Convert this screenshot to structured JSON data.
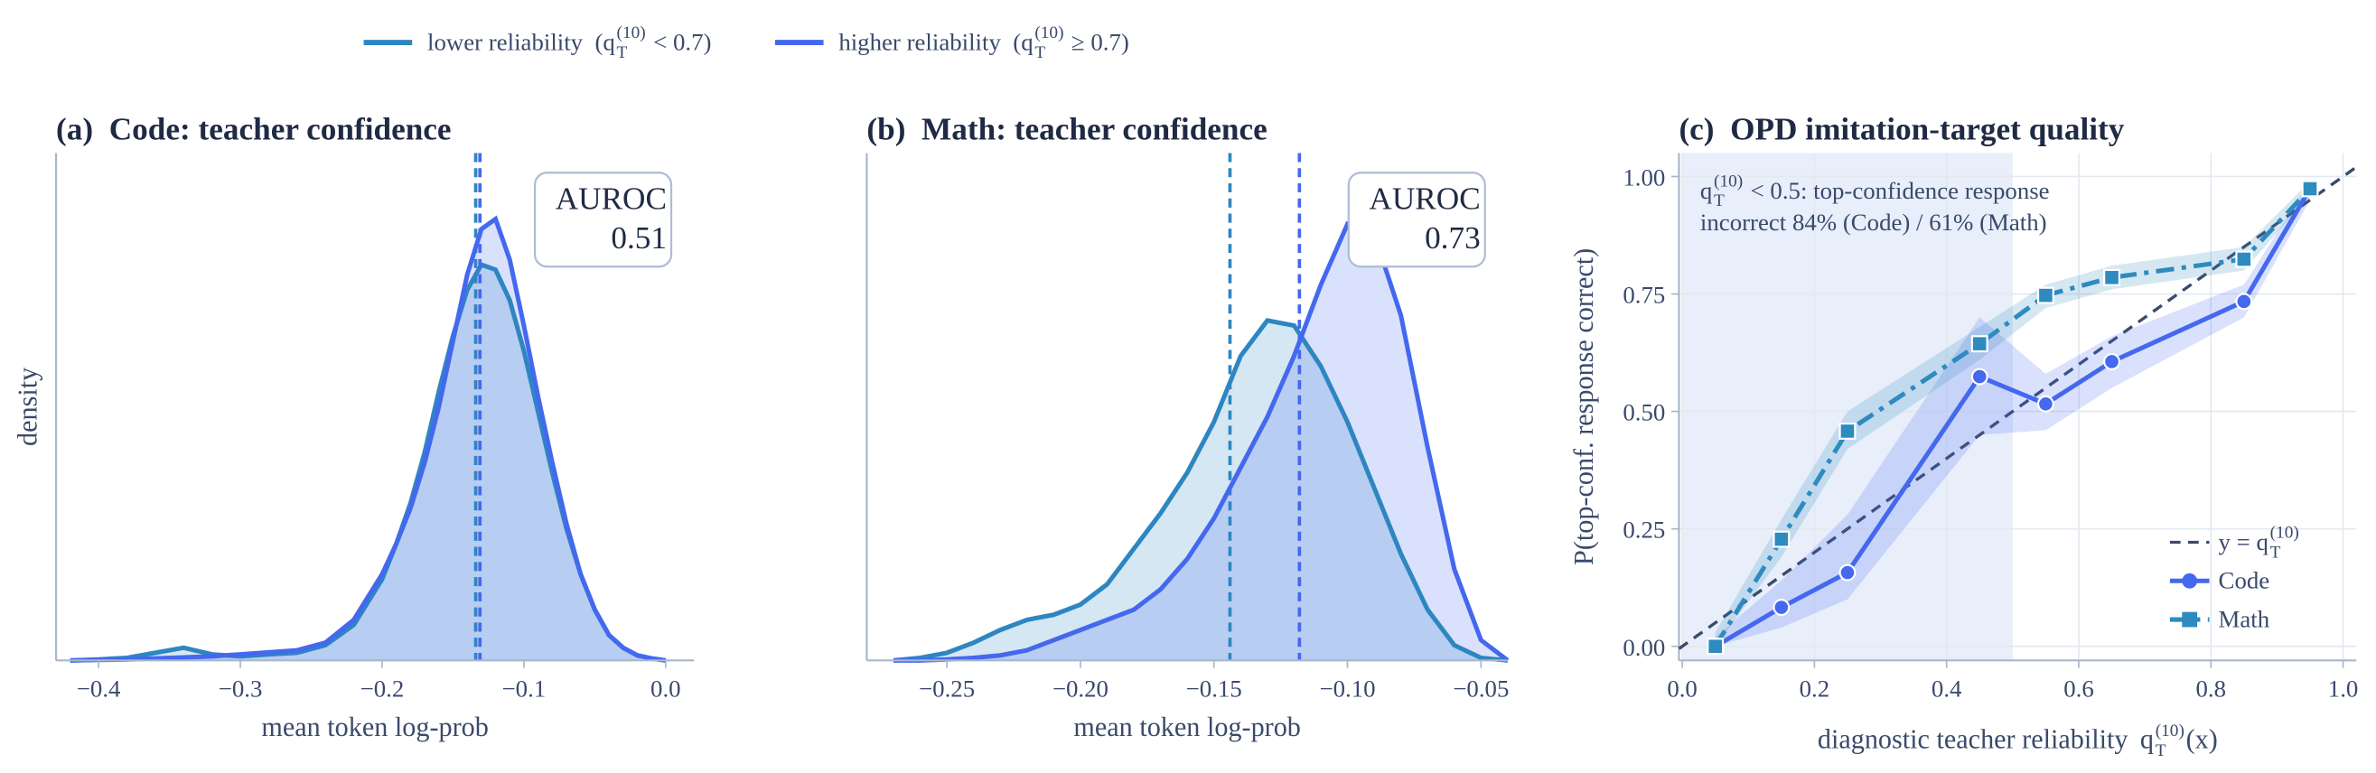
{
  "chart_data": [
    {
      "type": "density",
      "title": "(a)  Code: teacher confidence",
      "xlabel": "mean token log-prob",
      "ylabel": "density",
      "x": [
        -0.42,
        -0.4,
        -0.38,
        -0.36,
        -0.34,
        -0.32,
        -0.3,
        -0.28,
        -0.26,
        -0.24,
        -0.22,
        -0.2,
        -0.19,
        -0.18,
        -0.17,
        -0.16,
        -0.15,
        -0.14,
        -0.13,
        -0.12,
        -0.11,
        -0.1,
        -0.09,
        -0.08,
        -0.07,
        -0.06,
        -0.05,
        -0.04,
        -0.03,
        -0.02,
        -0.01,
        0.0
      ],
      "series": [
        {
          "name": "lower reliability",
          "condition": [
            "(q",
            "T",
            "(10)",
            " < 0.7)"
          ],
          "color": "#2e86c1",
          "vline": -0.134,
          "values": [
            0,
            0.002,
            0.005,
            0.015,
            0.025,
            0.012,
            0.008,
            0.012,
            0.015,
            0.03,
            0.07,
            0.16,
            0.23,
            0.31,
            0.41,
            0.53,
            0.64,
            0.73,
            0.78,
            0.77,
            0.71,
            0.61,
            0.49,
            0.37,
            0.26,
            0.17,
            0.1,
            0.05,
            0.025,
            0.01,
            0.004,
            0
          ]
        },
        {
          "name": "higher reliability",
          "condition": [
            "(q",
            "T",
            "(10)",
            " ≥ 0.7)"
          ],
          "color": "#4468ee",
          "vline": -0.131,
          "values": [
            0,
            0.001,
            0.002,
            0.004,
            0.006,
            0.008,
            0.012,
            0.016,
            0.02,
            0.035,
            0.08,
            0.17,
            0.23,
            0.3,
            0.39,
            0.5,
            0.63,
            0.76,
            0.85,
            0.87,
            0.79,
            0.66,
            0.52,
            0.39,
            0.27,
            0.17,
            0.1,
            0.05,
            0.025,
            0.01,
            0.004,
            0
          ]
        }
      ],
      "xlim": [
        -0.43,
        0.02
      ],
      "ylim": [
        0,
        1
      ],
      "xticks": [
        {
          "value": -0.4,
          "label": "−0.4"
        },
        {
          "value": -0.3,
          "label": "−0.3"
        },
        {
          "value": -0.2,
          "label": "−0.2"
        },
        {
          "value": -0.1,
          "label": "−0.1"
        },
        {
          "value": 0,
          "label": "0.0"
        }
      ],
      "annotation": [
        "AUROC",
        "0.51"
      ],
      "legend_position": "top"
    },
    {
      "type": "density",
      "title": "(b)  Math: teacher confidence",
      "xlabel": "mean token log-prob",
      "x": [
        -0.27,
        -0.26,
        -0.25,
        -0.24,
        -0.23,
        -0.22,
        -0.21,
        -0.2,
        -0.19,
        -0.18,
        -0.17,
        -0.16,
        -0.15,
        -0.14,
        -0.13,
        -0.12,
        -0.11,
        -0.1,
        -0.09,
        -0.08,
        -0.07,
        -0.06,
        -0.05,
        -0.04
      ],
      "series": [
        {
          "color": "#2e86c1",
          "vline": -0.144,
          "values": [
            0,
            0.005,
            0.015,
            0.035,
            0.06,
            0.08,
            0.09,
            0.11,
            0.15,
            0.22,
            0.29,
            0.37,
            0.47,
            0.6,
            0.67,
            0.66,
            0.58,
            0.47,
            0.34,
            0.21,
            0.1,
            0.03,
            0.005,
            0
          ]
        },
        {
          "color": "#4468ee",
          "vline": -0.118,
          "values": [
            0,
            0,
            0.002,
            0.005,
            0.01,
            0.02,
            0.04,
            0.06,
            0.08,
            0.1,
            0.14,
            0.2,
            0.28,
            0.38,
            0.48,
            0.6,
            0.74,
            0.86,
            0.84,
            0.68,
            0.42,
            0.18,
            0.04,
            0
          ]
        }
      ],
      "xlim": [
        -0.28,
        -0.04
      ],
      "ylim": [
        0,
        1
      ],
      "xticks": [
        {
          "value": -0.25,
          "label": "−0.25"
        },
        {
          "value": -0.2,
          "label": "−0.20"
        },
        {
          "value": -0.15,
          "label": "−0.15"
        },
        {
          "value": -0.1,
          "label": "−0.10"
        },
        {
          "value": -0.05,
          "label": "−0.05"
        }
      ],
      "annotation": [
        "AUROC",
        "0.73"
      ]
    },
    {
      "type": "line",
      "title": "(c)  OPD imitation-target quality",
      "xlabel": "diagnostic teacher reliability",
      "xlabel_math": [
        "q",
        "T",
        "(10)",
        "(x)"
      ],
      "ylabel": "P(top-conf. response correct)",
      "x": [
        0.05,
        0.15,
        0.25,
        0.45,
        0.55,
        0.65,
        0.85,
        0.95
      ],
      "series": [
        {
          "name": "Code",
          "color": "#4468ee",
          "marker": "circle",
          "dash": "solid",
          "values": [
            0,
            0.083,
            0.157,
            0.574,
            0.516,
            0.606,
            0.734,
            0.974
          ],
          "lower": [
            0,
            0.04,
            0.1,
            0.45,
            0.46,
            0.55,
            0.7,
            0.95
          ],
          "upper": [
            0.02,
            0.14,
            0.28,
            0.7,
            0.58,
            0.66,
            0.77,
            0.99
          ]
        },
        {
          "name": "Math",
          "color": "#2e8bc0",
          "marker": "square",
          "dash": "dashdot",
          "values": [
            0,
            0.228,
            0.458,
            0.644,
            0.747,
            0.785,
            0.824,
            0.974
          ],
          "lower": [
            0,
            0.19,
            0.42,
            0.61,
            0.72,
            0.76,
            0.8,
            0.96
          ],
          "upper": [
            0.03,
            0.27,
            0.5,
            0.68,
            0.77,
            0.81,
            0.85,
            0.99
          ]
        }
      ],
      "reference": {
        "math": [
          "y = q",
          "T",
          "(10)"
        ],
        "color": "#3b4a6b"
      },
      "shaded_region": {
        "x": [
          0,
          0.5
        ],
        "color": "#e8eefa"
      },
      "annotation": {
        "math": [
          "q",
          "T",
          "(10)",
          " < 0.5: top-confidence response"
        ],
        "text": "incorrect 84% (Code) / 61% (Math)"
      },
      "xlim": [
        -0.005,
        1.02
      ],
      "ylim": [
        -0.03,
        1.05
      ],
      "xticks": [
        {
          "value": 0,
          "label": "0.0"
        },
        {
          "value": 0.2,
          "label": "0.2"
        },
        {
          "value": 0.4,
          "label": "0.4"
        },
        {
          "value": 0.6,
          "label": "0.6"
        },
        {
          "value": 0.8,
          "label": "0.8"
        },
        {
          "value": 1,
          "label": "1.0"
        }
      ],
      "yticks": [
        {
          "value": 0,
          "label": "0.00"
        },
        {
          "value": 0.25,
          "label": "0.25"
        },
        {
          "value": 0.5,
          "label": "0.50"
        },
        {
          "value": 0.75,
          "label": "0.75"
        },
        {
          "value": 1,
          "label": "1.00"
        }
      ],
      "grid": true,
      "legend_position": "lower right"
    }
  ]
}
